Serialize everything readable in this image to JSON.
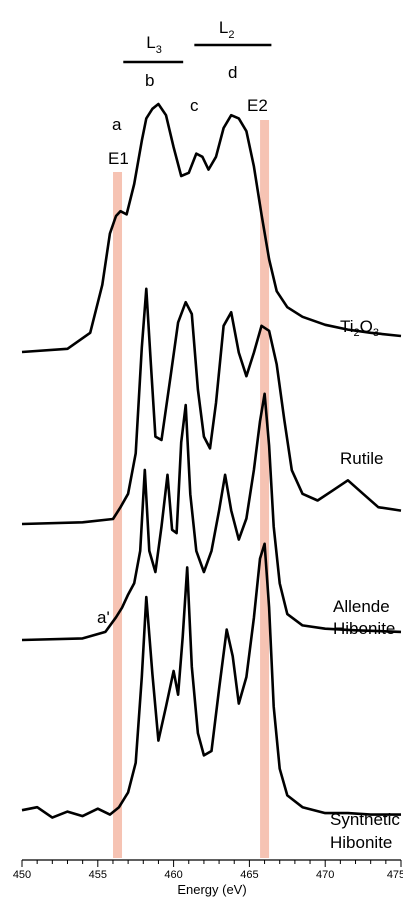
{
  "chart_data": {
    "type": "line",
    "xlabel": "Energy (eV)",
    "ylabel": "",
    "xlim": [
      450,
      475
    ],
    "x_ticks": [
      "450",
      "455",
      "460",
      "465",
      "470",
      "475"
    ],
    "grid": false,
    "highlight_bands": [
      {
        "name": "E1",
        "x": 456.3,
        "color": "#f4b8a6"
      },
      {
        "name": "E2",
        "x": 466.0,
        "color": "#f4b8a6"
      }
    ],
    "edge_labels": [
      {
        "text": "L",
        "sub": "3",
        "from": 458.0,
        "to": 460.5
      },
      {
        "text": "L",
        "sub": "2",
        "from": 461.5,
        "to": 465.0
      }
    ],
    "peak_labels": [
      "a",
      "b",
      "c",
      "d",
      "a'"
    ],
    "series": [
      {
        "name": "Ti2O3",
        "label_text": "Ti",
        "label_sub1": "2",
        "label_mid": "O",
        "label_sub2": "3",
        "x": [
          450,
          453,
          454.5,
          455.3,
          455.8,
          456.2,
          456.5,
          456.9,
          457.4,
          457.9,
          458.2,
          458.6,
          459.0,
          459.5,
          460.0,
          460.5,
          461.0,
          461.5,
          461.9,
          462.3,
          462.8,
          463.3,
          463.8,
          464.3,
          464.8,
          465.3,
          465.8,
          466.3,
          466.8,
          467.5,
          468.5,
          470,
          471.5,
          473,
          475
        ],
        "values": [
          0.0,
          0.02,
          0.12,
          0.42,
          0.74,
          0.85,
          0.88,
          0.86,
          1.05,
          1.32,
          1.46,
          1.52,
          1.55,
          1.48,
          1.28,
          1.1,
          1.12,
          1.24,
          1.22,
          1.14,
          1.22,
          1.4,
          1.48,
          1.46,
          1.38,
          1.16,
          0.86,
          0.58,
          0.38,
          0.28,
          0.22,
          0.17,
          0.14,
          0.12,
          0.1
        ]
      },
      {
        "name": "Rutile",
        "label_text": "Rutile",
        "x": [
          450,
          454,
          456.0,
          456.5,
          457.0,
          457.5,
          457.9,
          458.2,
          458.5,
          458.8,
          459.2,
          459.8,
          460.3,
          460.8,
          461.2,
          461.6,
          462.0,
          462.4,
          462.8,
          463.3,
          463.8,
          464.3,
          464.8,
          465.3,
          465.8,
          466.3,
          466.8,
          467.3,
          467.8,
          468.5,
          469.5,
          470.5,
          471.5,
          472.5,
          473.5,
          475
        ],
        "values": [
          0.0,
          0.01,
          0.03,
          0.1,
          0.18,
          0.42,
          1.05,
          1.4,
          0.95,
          0.52,
          0.5,
          0.88,
          1.2,
          1.32,
          1.25,
          0.8,
          0.52,
          0.45,
          0.72,
          1.18,
          1.26,
          1.02,
          0.88,
          1.02,
          1.18,
          1.15,
          0.95,
          0.62,
          0.32,
          0.18,
          0.14,
          0.2,
          0.26,
          0.18,
          0.1,
          0.08
        ]
      },
      {
        "name": "Allende Hibonite",
        "label_text": "Allende",
        "label_text2": "Hibonite",
        "x": [
          450,
          454,
          455.5,
          456.2,
          456.6,
          457.0,
          457.4,
          457.8,
          458.1,
          458.4,
          458.8,
          459.2,
          459.6,
          459.9,
          460.2,
          460.5,
          460.8,
          461.1,
          461.5,
          462.0,
          462.5,
          463.0,
          463.4,
          463.8,
          464.3,
          464.8,
          465.3,
          465.7,
          466.0,
          466.3,
          466.6,
          467.0,
          467.5,
          468.5,
          470,
          472,
          475
        ],
        "values": [
          0.0,
          0.01,
          0.05,
          0.14,
          0.2,
          0.28,
          0.35,
          0.55,
          1.05,
          0.55,
          0.42,
          0.7,
          1.02,
          0.68,
          0.66,
          1.22,
          1.45,
          0.9,
          0.55,
          0.42,
          0.55,
          0.8,
          1.02,
          0.8,
          0.62,
          0.75,
          1.05,
          1.35,
          1.52,
          1.2,
          0.7,
          0.35,
          0.16,
          0.09,
          0.07,
          0.06,
          0.05
        ]
      },
      {
        "name": "Synthetic Hibonite",
        "label_text": "Synthetic",
        "label_text2": "Hibonite",
        "x": [
          450,
          451,
          452,
          453,
          454,
          455,
          455.8,
          456.4,
          457.0,
          457.5,
          457.9,
          458.2,
          458.6,
          459.0,
          459.5,
          460.0,
          460.3,
          460.6,
          460.9,
          461.2,
          461.6,
          462.0,
          462.5,
          463.0,
          463.5,
          463.9,
          464.3,
          464.8,
          465.3,
          465.7,
          466.0,
          466.3,
          466.6,
          467.0,
          467.5,
          468.5,
          470,
          471.5,
          473,
          475
        ],
        "values": [
          0.08,
          0.1,
          0.03,
          0.07,
          0.04,
          0.09,
          0.05,
          0.1,
          0.2,
          0.4,
          0.98,
          1.52,
          1.0,
          0.55,
          0.78,
          1.02,
          0.86,
          1.25,
          1.72,
          1.05,
          0.6,
          0.45,
          0.48,
          0.9,
          1.3,
          1.12,
          0.8,
          0.98,
          1.38,
          1.78,
          1.88,
          1.45,
          0.78,
          0.36,
          0.18,
          0.1,
          0.06,
          0.06,
          0.05,
          0.05
        ]
      }
    ]
  }
}
